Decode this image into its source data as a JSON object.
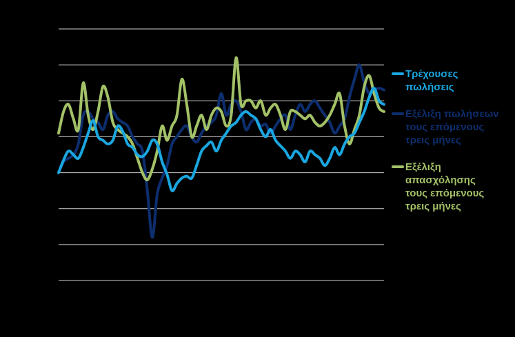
{
  "chart_data": {
    "type": "line",
    "ylim": [
      0,
      7
    ],
    "grid": true,
    "legend_placement": "right",
    "series": [
      {
        "name": "Τρέχουσες\nπωλήσεις",
        "color": "#1aa6e0",
        "values": [
          3.0,
          3.35,
          3.6,
          3.5,
          3.4,
          3.7,
          4.1,
          4.45,
          4.0,
          3.9,
          3.8,
          3.9,
          4.3,
          4.15,
          3.8,
          3.7,
          3.5,
          3.45,
          3.6,
          3.9,
          3.8,
          3.3,
          2.95,
          2.5,
          2.7,
          2.85,
          2.9,
          2.85,
          3.2,
          3.6,
          3.75,
          3.85,
          3.6,
          3.9,
          4.1,
          4.3,
          4.4,
          4.6,
          4.7,
          4.6,
          4.5,
          4.2,
          4.0,
          4.2,
          3.9,
          3.75,
          3.6,
          3.4,
          3.6,
          3.5,
          3.3,
          3.6,
          3.5,
          3.4,
          3.2,
          3.4,
          3.7,
          3.5,
          3.8,
          4.0,
          4.1,
          4.4,
          4.7,
          5.1,
          5.35,
          5.0,
          4.9
        ]
      },
      {
        "name": "Εξέλιξη πωλήσεων\nτους επόμενους\nτρεις μήνες",
        "color": "#0d2e6e",
        "values": [
          3.0,
          3.3,
          3.4,
          3.5,
          3.8,
          4.6,
          4.7,
          4.5,
          4.4,
          4.2,
          4.6,
          4.7,
          4.5,
          4.4,
          4.3,
          4.0,
          3.8,
          3.6,
          2.5,
          1.2,
          2.4,
          2.85,
          3.2,
          3.8,
          4.0,
          4.2,
          4.3,
          4.0,
          3.85,
          4.1,
          4.3,
          4.4,
          4.6,
          5.2,
          4.6,
          4.9,
          5.0,
          4.7,
          4.2,
          4.4,
          4.5,
          4.3,
          4.35,
          4.1,
          4.3,
          4.5,
          4.6,
          4.2,
          4.6,
          4.9,
          4.7,
          4.9,
          5.0,
          4.8,
          4.6,
          4.4,
          4.1,
          4.3,
          4.5,
          5.1,
          5.6,
          6.0,
          5.5,
          5.2,
          5.3,
          5.35,
          5.3
        ]
      },
      {
        "name": "Εξέλιξη\nαπασχόλησης\nτους επόμενους\nτρεις μήνες",
        "color": "#a3c167",
        "values": [
          4.1,
          4.7,
          4.9,
          4.5,
          4.2,
          5.5,
          4.6,
          4.2,
          4.7,
          5.4,
          5.1,
          4.4,
          4.2,
          4.1,
          4.0,
          3.8,
          3.4,
          3.0,
          2.8,
          3.1,
          3.6,
          4.3,
          3.9,
          4.3,
          4.6,
          5.6,
          4.9,
          4.0,
          4.3,
          4.6,
          4.2,
          4.6,
          4.8,
          4.7,
          4.3,
          4.6,
          6.2,
          4.9,
          5.0,
          5.0,
          4.8,
          5.0,
          4.6,
          4.8,
          4.9,
          4.6,
          4.2,
          4.7,
          4.7,
          4.6,
          4.5,
          4.6,
          4.4,
          4.3,
          4.4,
          4.6,
          4.9,
          5.2,
          4.3,
          3.8,
          4.2,
          4.6,
          5.4,
          5.7,
          5.2,
          4.8,
          4.7
        ]
      }
    ]
  }
}
